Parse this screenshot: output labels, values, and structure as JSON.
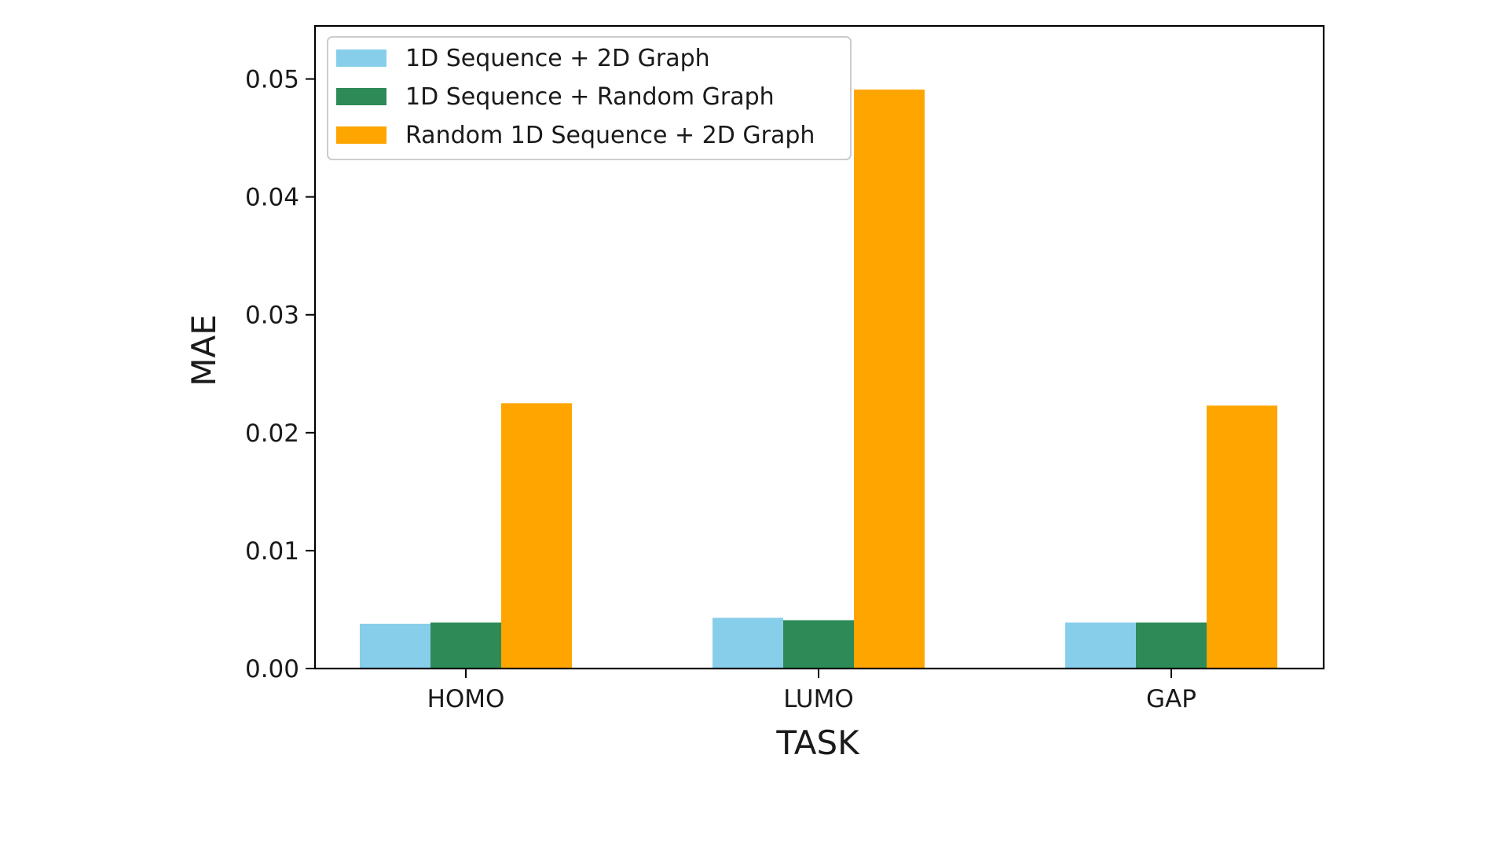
{
  "chart_data": {
    "type": "bar",
    "title": "",
    "xlabel": "TASK",
    "ylabel": "MAE",
    "categories": [
      "HOMO",
      "LUMO",
      "GAP"
    ],
    "series": [
      {
        "name": "1D Sequence + 2D Graph",
        "color": "#87ceeb",
        "values": [
          0.0038,
          0.0043,
          0.0039
        ]
      },
      {
        "name": "1D Sequence + Random Graph",
        "color": "#2e8b57",
        "values": [
          0.0039,
          0.0041,
          0.0039
        ]
      },
      {
        "name": "Random 1D Sequence + 2D Graph",
        "color": "#ffa500",
        "values": [
          0.0225,
          0.0491,
          0.0223
        ]
      }
    ],
    "ylim": [
      0,
      0.0545
    ],
    "yticks": [
      "0.00",
      "0.01",
      "0.02",
      "0.03",
      "0.04",
      "0.05"
    ],
    "grid": false,
    "legend_position": "top-left"
  }
}
